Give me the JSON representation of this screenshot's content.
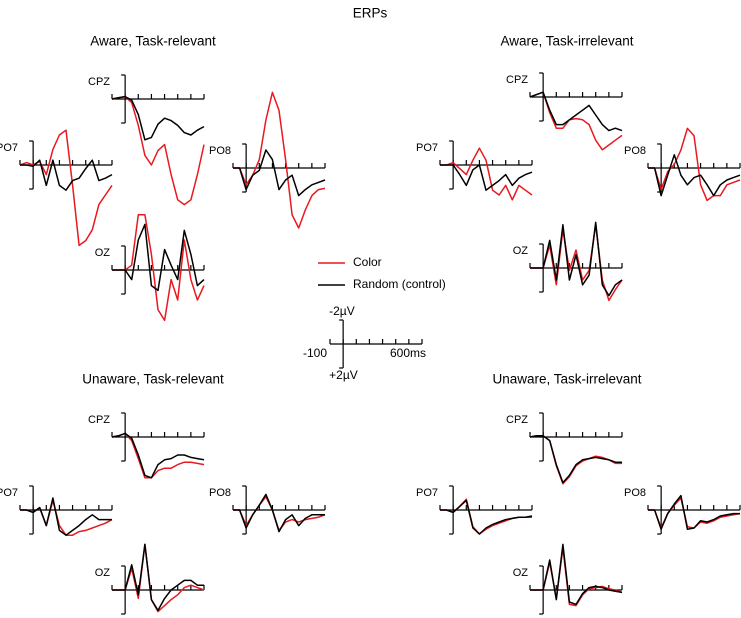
{
  "chart_data": {
    "type": "line",
    "title": "ERPs",
    "x": [
      -100,
      -50,
      0,
      50,
      100,
      150,
      200,
      250,
      300,
      350,
      400,
      450,
      500,
      550,
      600
    ],
    "xlim": [
      -100,
      600
    ],
    "ylim": [
      -2,
      2
    ],
    "y_inverted": true,
    "xticks": [
      {
        "value": -100,
        "label": "-100"
      },
      0,
      100,
      200,
      300,
      400,
      500,
      {
        "value": 600,
        "label": "600ms"
      }
    ],
    "yticks": [
      {
        "value": -2,
        "label": "-2µV"
      },
      {
        "value": 2,
        "label": "+2µV"
      }
    ],
    "series": [
      {
        "name": "Color",
        "color": "#e8191f"
      },
      {
        "name": "Random (control)",
        "color": "#000000"
      }
    ],
    "panels": [
      {
        "title": "Aware, Task-relevant",
        "plots": [
          {
            "label": "CPZ",
            "values": [
              [
                0,
                -0.1,
                -0.2,
                0.3,
                2.2,
                4.7,
                5.5,
                4.3,
                3.8,
                6.3,
                8.4,
                8.8,
                8.4,
                6.3,
                3.8
              ],
              [
                0,
                -0.1,
                -0.2,
                0.1,
                1.3,
                3.4,
                3.2,
                2.1,
                1.6,
                1.8,
                2.2,
                2.8,
                3,
                2.6,
                2.3
              ]
            ]
          },
          {
            "label": "PO7",
            "values": [
              [
                0,
                -0.2,
                0,
                -0.3,
                0.8,
                -1.3,
                -2.5,
                -2.9,
                1.7,
                6.7,
                6.3,
                5.4,
                3.3,
                2.5,
                1.7
              ],
              [
                0,
                0,
                0.1,
                -0.4,
                1.7,
                -0.4,
                1.7,
                2.1,
                1.3,
                1.1,
                0.3,
                -0.4,
                1.3,
                1.1,
                0.8
              ]
            ]
          },
          {
            "label": "PO8",
            "values": [
              [
                0,
                0,
                1.4,
                0.6,
                -0.7,
                -4,
                -6.3,
                -4.8,
                -0.7,
                3.9,
                5,
                3.5,
                2.3,
                1.8,
                1.7
              ],
              [
                0,
                0,
                1.8,
                0.6,
                0.2,
                -1.5,
                -0.7,
                1.8,
                1,
                0.6,
                2.3,
                1.8,
                1.4,
                1.2,
                1
              ]
            ]
          },
          {
            "label": "OZ",
            "values": [
              [
                0,
                0,
                0,
                -0.4,
                -4.6,
                -4.6,
                -1.3,
                3.3,
                4.2,
                0.8,
                2.5,
                -2.5,
                0.8,
                2.5,
                1.3
              ],
              [
                0,
                0,
                0,
                0.8,
                -2.5,
                -3.8,
                1.3,
                1.7,
                -1.7,
                -0.4,
                0.8,
                -3.3,
                -1.3,
                1.3,
                0.8
              ]
            ]
          }
        ]
      },
      {
        "title": "Aware, Task-irrelevant",
        "plots": [
          {
            "label": "CPZ",
            "values": [
              [
                0,
                -0.2,
                -0.4,
                1.3,
                2.6,
                2.6,
                1.9,
                1.8,
                1.9,
                2.3,
                3.6,
                4.4,
                4,
                3.6,
                3.2
              ],
              [
                0,
                -0.2,
                -0.4,
                1.1,
                2.3,
                2.3,
                1.9,
                1.5,
                1.1,
                0.7,
                1.5,
                2.3,
                2.8,
                2.6,
                2.8
              ]
            ]
          },
          {
            "label": "PO7",
            "values": [
              [
                0,
                0,
                -0.2,
                0.3,
                0.8,
                -0.4,
                -1.4,
                -0.4,
                2.1,
                2.5,
                1.7,
                2.9,
                1.7,
                2.1,
                2.5
              ],
              [
                0,
                0,
                0,
                0.8,
                1.7,
                0.4,
                0,
                2.1,
                1.7,
                1.3,
                0.8,
                1.7,
                1.1,
                0.8,
                0.6
              ]
            ]
          },
          {
            "label": "PO8",
            "values": [
              [
                0,
                0,
                1.8,
                0.3,
                -0.3,
                -1.5,
                -3.3,
                -2.7,
                1.4,
                2.7,
                2.3,
                2.3,
                1.4,
                1.2,
                1
              ],
              [
                0,
                0,
                2.3,
                0.6,
                -1.1,
                0.6,
                1.4,
                0.8,
                0.6,
                1.4,
                2.3,
                1.4,
                1,
                0.8,
                0.6
              ]
            ]
          },
          {
            "label": "OZ",
            "values": [
              [
                0,
                0,
                0,
                -1.9,
                1.4,
                -3.2,
                0.2,
                -1.5,
                1,
                0.2,
                -3.6,
                1,
                2.7,
                1.8,
                1
              ],
              [
                0,
                0,
                0,
                -2.3,
                1,
                -3.6,
                1,
                -1.1,
                1.4,
                0.6,
                -3.8,
                1.4,
                2.3,
                1.4,
                1
              ]
            ]
          }
        ]
      },
      {
        "title": "Unaware, Task-relevant",
        "plots": [
          {
            "label": "CPZ",
            "values": [
              [
                0,
                -0.1,
                -0.3,
                0.3,
                1.8,
                3.4,
                3.4,
                2.8,
                2.6,
                2.6,
                2.3,
                2.1,
                2.1,
                2.2,
                2.3
              ],
              [
                0,
                -0.1,
                -0.3,
                0.1,
                1.5,
                3.2,
                3.4,
                2.3,
                1.9,
                1.8,
                1.5,
                1.5,
                1.7,
                1.8,
                1.9
              ]
            ]
          },
          {
            "label": "PO7",
            "values": [
              [
                0,
                0,
                0.2,
                -0.2,
                1.3,
                -0.8,
                1.3,
                2.1,
                2.1,
                1.8,
                1.7,
                1.5,
                1.3,
                1.1,
                0.8
              ],
              [
                0,
                0,
                0.2,
                -0.2,
                1.3,
                -1,
                1.7,
                2.1,
                1.7,
                1.3,
                0.8,
                0.4,
                0.8,
                0.8,
                0.8
              ]
            ]
          },
          {
            "label": "PO8",
            "values": [
              [
                0,
                0,
                1.3,
                0.4,
                -0.4,
                -1.1,
                0,
                1.7,
                1,
                0.8,
                1,
                0.8,
                0.7,
                0.6,
                0.4
              ],
              [
                0,
                0,
                1.5,
                0.4,
                -0.4,
                -1.3,
                0,
                1.8,
                0.8,
                0.4,
                1.3,
                0.7,
                0.4,
                0.4,
                0.4
              ]
            ]
          },
          {
            "label": "OZ",
            "values": [
              [
                0,
                0,
                0,
                -1.8,
                0.7,
                -3.8,
                0.8,
                1.8,
                1.3,
                0.8,
                0.4,
                -0.2,
                -0.4,
                -0.2,
                0
              ],
              [
                0,
                0,
                0,
                -2.1,
                0.4,
                -3.8,
                0.8,
                1.7,
                0.7,
                0,
                -0.4,
                -0.8,
                -0.8,
                -0.4,
                -0.4
              ]
            ]
          }
        ]
      },
      {
        "title": "Unaware, Task-irrelevant",
        "plots": [
          {
            "label": "CPZ",
            "values": [
              [
                0,
                -0.1,
                -0.1,
                0.3,
                2.4,
                3.9,
                3.3,
                2.4,
                2,
                1.8,
                1.6,
                1.7,
                1.9,
                2.2,
                2.2
              ],
              [
                0,
                -0.1,
                -0.1,
                0.3,
                2.3,
                3.8,
                3.2,
                2.3,
                1.9,
                1.8,
                1.7,
                1.8,
                1.9,
                2.1,
                2.1
              ]
            ]
          },
          {
            "label": "PO7",
            "values": [
              [
                0,
                0,
                0.2,
                -0.3,
                -0.9,
                1.4,
                2,
                1.6,
                1.3,
                1.1,
                0.9,
                0.7,
                0.6,
                0.6,
                0.6
              ],
              [
                0,
                0,
                0.2,
                -0.3,
                -0.8,
                1.5,
                2,
                1.5,
                1.2,
                1,
                0.8,
                0.7,
                0.6,
                0.6,
                0.5
              ]
            ]
          },
          {
            "label": "PO8",
            "values": [
              [
                0,
                0,
                1.5,
                0.3,
                -0.4,
                -1,
                1.4,
                1.5,
                1,
                1.1,
                0.9,
                0.6,
                0.5,
                0.4,
                0.3
              ],
              [
                0,
                0,
                1.6,
                0.3,
                -0.5,
                -1.2,
                1.6,
                1.5,
                0.9,
                1,
                0.8,
                0.5,
                0.4,
                0.3,
                0.3
              ]
            ]
          },
          {
            "label": "OZ",
            "values": [
              [
                0,
                0,
                0,
                -2.3,
                0.7,
                -3.5,
                1.2,
                1.3,
                0.4,
                -0.1,
                -0.2,
                -0.3,
                -0.1,
                0,
                0.2
              ],
              [
                0,
                0,
                0,
                -2.5,
                0.8,
                -3.8,
                1,
                1.2,
                0.3,
                -0.2,
                -0.3,
                -0.2,
                0,
                0.1,
                0.2
              ]
            ]
          }
        ]
      }
    ]
  }
}
